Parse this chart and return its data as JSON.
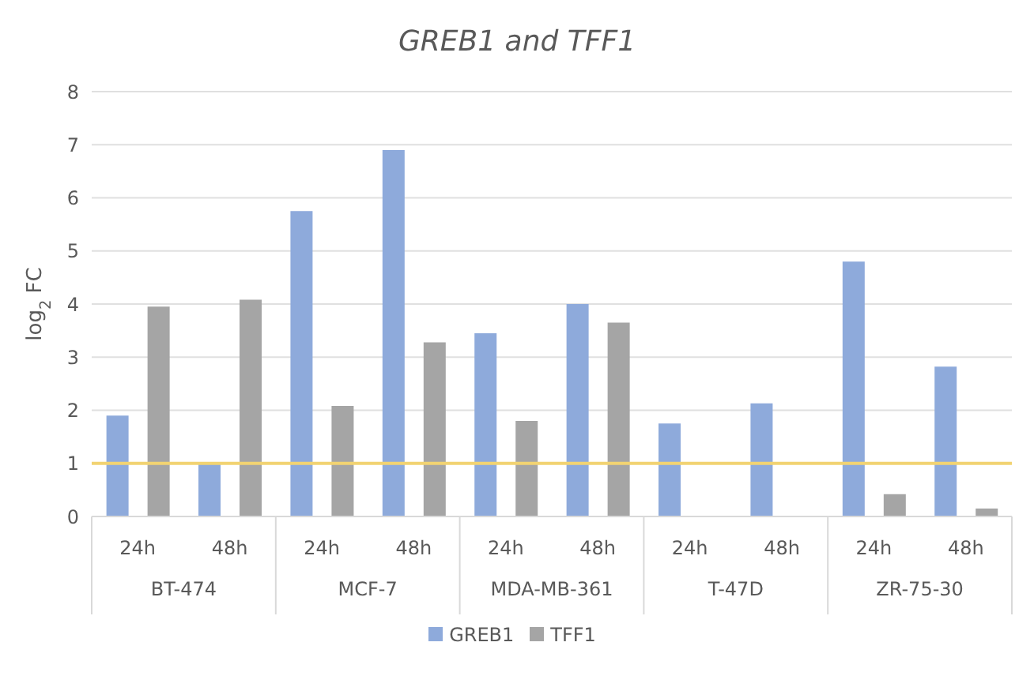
{
  "chart_data": {
    "type": "bar",
    "title": "GREB1 and TFF1",
    "ylabel": "log$_{2}$ FC",
    "categories": [
      "24h",
      "48h",
      "24h",
      "48h",
      "24h",
      "48h",
      "24h",
      "48h",
      "24h",
      "48h"
    ],
    "annotations": [
      "BT-474",
      "MCF-7",
      "MDA-MB-361",
      "T-47D",
      "ZR-75-30"
    ],
    "series": [
      {
        "name": "GREB1",
        "color": "#8eaadb",
        "values": [
          1.9,
          0.98,
          5.75,
          6.9,
          3.45,
          4.0,
          1.75,
          2.13,
          4.8,
          2.82
        ]
      },
      {
        "name": "TFF1",
        "color": "#a5a5a5",
        "values": [
          3.95,
          4.08,
          2.08,
          3.28,
          1.8,
          3.65,
          null,
          null,
          0.42,
          0.15
        ]
      }
    ],
    "ylim": [
      0,
      8
    ],
    "yticks": [
      0,
      1,
      2,
      3,
      4,
      5,
      6,
      7,
      8
    ],
    "grid": "y",
    "legend": "bottom",
    "ref_lines": [
      {
        "axis": "y",
        "value": 1,
        "color": "#f2d372"
      }
    ]
  }
}
